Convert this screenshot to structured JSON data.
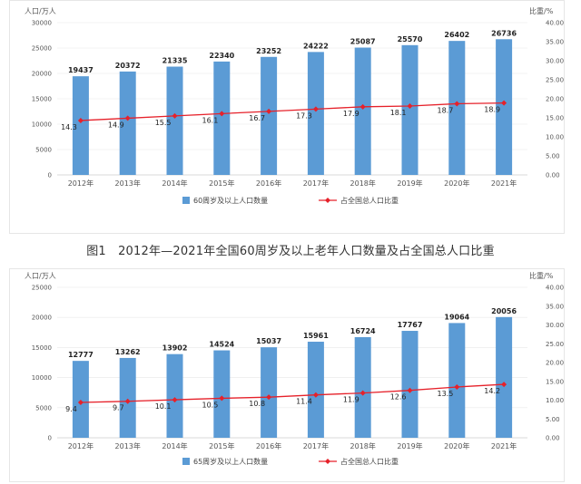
{
  "caption": "图1　2012年—2021年全国60周岁及以上老年人口数量及占全国总人口比重",
  "colors": {
    "bar": "#5b9bd5",
    "line": "#e6212a",
    "axis": "#d9d9d9",
    "grid": "#e8e8e8"
  },
  "chart_data": [
    {
      "type": "bar",
      "categories": [
        "2012年",
        "2013年",
        "2014年",
        "2015年",
        "2016年",
        "2017年",
        "2018年",
        "2019年",
        "2020年",
        "2021年"
      ],
      "y_left_unit": "人口/万人",
      "y_right_unit": "比重/%",
      "ylim_left": [
        0,
        30000
      ],
      "ylim_right": [
        0,
        40
      ],
      "left_ticks": [
        "0",
        "5000",
        "10000",
        "15000",
        "20000",
        "25000",
        "30000"
      ],
      "right_ticks": [
        "0.00",
        "5.00",
        "10.00",
        "15.00",
        "20.00",
        "25.00",
        "30.00",
        "35.00",
        "40.00"
      ],
      "series": [
        {
          "name": "60周岁及以上人口数量",
          "kind": "bar",
          "axis": "left",
          "values": [
            19437,
            20372,
            21335,
            22340,
            23252,
            24222,
            25087,
            25570,
            26402,
            26736
          ]
        },
        {
          "name": "占全国总人口比重",
          "kind": "line",
          "axis": "right",
          "values": [
            14.3,
            14.9,
            15.5,
            16.1,
            16.7,
            17.3,
            17.9,
            18.1,
            18.7,
            18.9
          ]
        }
      ],
      "legend": "bottom-center"
    },
    {
      "type": "bar",
      "categories": [
        "2012年",
        "2013年",
        "2014年",
        "2015年",
        "2016年",
        "2017年",
        "2018年",
        "2019年",
        "2020年",
        "2021年"
      ],
      "y_left_unit": "人口/万人",
      "y_right_unit": "比重/%",
      "ylim_left": [
        0,
        25000
      ],
      "ylim_right": [
        0,
        40
      ],
      "left_ticks": [
        "0",
        "5000",
        "10000",
        "15000",
        "20000",
        "25000"
      ],
      "right_ticks": [
        "0.00",
        "5.00",
        "10.00",
        "15.00",
        "20.00",
        "25.00",
        "30.00",
        "35.00",
        "40.00"
      ],
      "series": [
        {
          "name": "65周岁及以上人口数量",
          "kind": "bar",
          "axis": "left",
          "values": [
            12777,
            13262,
            13902,
            14524,
            15037,
            15961,
            16724,
            17767,
            19064,
            20056
          ]
        },
        {
          "name": "占全国总人口比重",
          "kind": "line",
          "axis": "right",
          "values": [
            9.4,
            9.7,
            10.1,
            10.5,
            10.8,
            11.4,
            11.9,
            12.6,
            13.5,
            14.2
          ]
        }
      ],
      "legend": "bottom-center"
    }
  ]
}
